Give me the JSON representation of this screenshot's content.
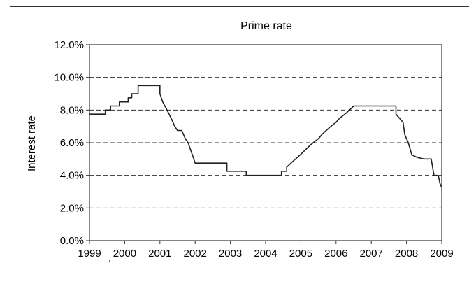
{
  "chart_data": {
    "type": "line",
    "title": "Prime rate",
    "xlabel": "",
    "ylabel": "Interest rate",
    "xlim": [
      1999,
      2009
    ],
    "ylim": [
      0,
      12
    ],
    "x_ticks": [
      "1999",
      "2000",
      "2001",
      "2002",
      "2003",
      "2004",
      "2005",
      "2006",
      "2007",
      "2008",
      "2009"
    ],
    "y_ticks": [
      "0.0%",
      "2.0%",
      "4.0%",
      "6.0%",
      "8.0%",
      "10.0%",
      "12.0%"
    ],
    "grid": "horizontal dashed",
    "legend": "none",
    "line_color": "#222222",
    "series": [
      {
        "values": [
          [
            1999.0,
            7.75
          ],
          [
            1999.45,
            7.75
          ],
          [
            1999.45,
            8.0
          ],
          [
            1999.6,
            8.0
          ],
          [
            1999.6,
            8.25
          ],
          [
            1999.85,
            8.25
          ],
          [
            1999.85,
            8.5
          ],
          [
            2000.1,
            8.5
          ],
          [
            2000.1,
            8.75
          ],
          [
            2000.2,
            8.75
          ],
          [
            2000.2,
            9.0
          ],
          [
            2000.38,
            9.0
          ],
          [
            2000.38,
            9.5
          ],
          [
            2001.0,
            9.5
          ],
          [
            2001.0,
            9.0
          ],
          [
            2001.08,
            8.5
          ],
          [
            2001.2,
            8.0
          ],
          [
            2001.32,
            7.5
          ],
          [
            2001.42,
            7.0
          ],
          [
            2001.5,
            6.75
          ],
          [
            2001.62,
            6.75
          ],
          [
            2001.72,
            6.25
          ],
          [
            2001.8,
            6.0
          ],
          [
            2001.88,
            5.5
          ],
          [
            2001.96,
            5.0
          ],
          [
            2002.0,
            4.75
          ],
          [
            2002.9,
            4.75
          ],
          [
            2002.9,
            4.25
          ],
          [
            2003.45,
            4.25
          ],
          [
            2003.45,
            4.0
          ],
          [
            2004.45,
            4.0
          ],
          [
            2004.45,
            4.25
          ],
          [
            2004.6,
            4.25
          ],
          [
            2004.6,
            4.5
          ],
          [
            2004.72,
            4.75
          ],
          [
            2004.85,
            5.0
          ],
          [
            2004.98,
            5.25
          ],
          [
            2005.1,
            5.5
          ],
          [
            2005.22,
            5.75
          ],
          [
            2005.35,
            6.0
          ],
          [
            2005.5,
            6.25
          ],
          [
            2005.6,
            6.5
          ],
          [
            2005.72,
            6.75
          ],
          [
            2005.85,
            7.0
          ],
          [
            2006.0,
            7.25
          ],
          [
            2006.1,
            7.5
          ],
          [
            2006.25,
            7.75
          ],
          [
            2006.38,
            8.0
          ],
          [
            2006.5,
            8.25
          ],
          [
            2007.7,
            8.25
          ],
          [
            2007.7,
            7.75
          ],
          [
            2007.8,
            7.5
          ],
          [
            2007.9,
            7.25
          ],
          [
            2007.95,
            6.5
          ],
          [
            2008.05,
            6.0
          ],
          [
            2008.15,
            5.25
          ],
          [
            2008.3,
            5.1
          ],
          [
            2008.5,
            5.0
          ],
          [
            2008.7,
            5.0
          ],
          [
            2008.78,
            4.0
          ],
          [
            2008.9,
            4.0
          ],
          [
            2008.95,
            3.5
          ],
          [
            2009.0,
            3.25
          ]
        ]
      }
    ]
  }
}
